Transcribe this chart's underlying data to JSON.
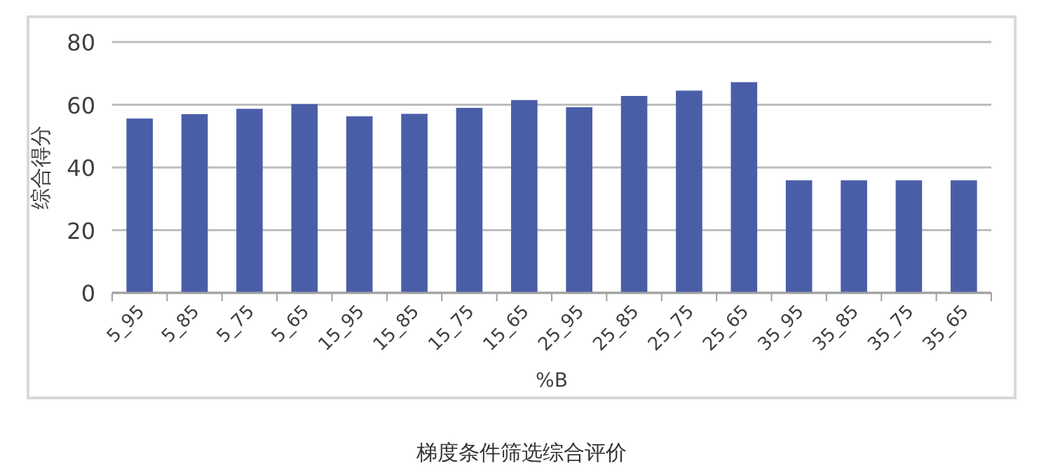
{
  "chart_data": {
    "type": "bar",
    "categories": [
      "5_95",
      "5_85",
      "5_75",
      "5_65",
      "15_95",
      "15_85",
      "15_75",
      "15_65",
      "25_95",
      "25_85",
      "25_75",
      "25_65",
      "35_95",
      "35_85",
      "35_75",
      "35_65"
    ],
    "values": [
      55.6,
      57.0,
      58.7,
      60.2,
      56.3,
      57.1,
      59.0,
      61.5,
      59.2,
      62.8,
      64.5,
      67.2,
      35.9,
      35.9,
      35.9,
      35.9
    ],
    "color": "#4a5ea8",
    "xlabel": "%B",
    "ylabel": "综合得分",
    "ylim": [
      0,
      80
    ],
    "yticks": [
      0,
      20,
      40,
      60,
      80
    ],
    "grid": "y",
    "annotations": [
      "梯度条件筛选综合评价"
    ]
  }
}
